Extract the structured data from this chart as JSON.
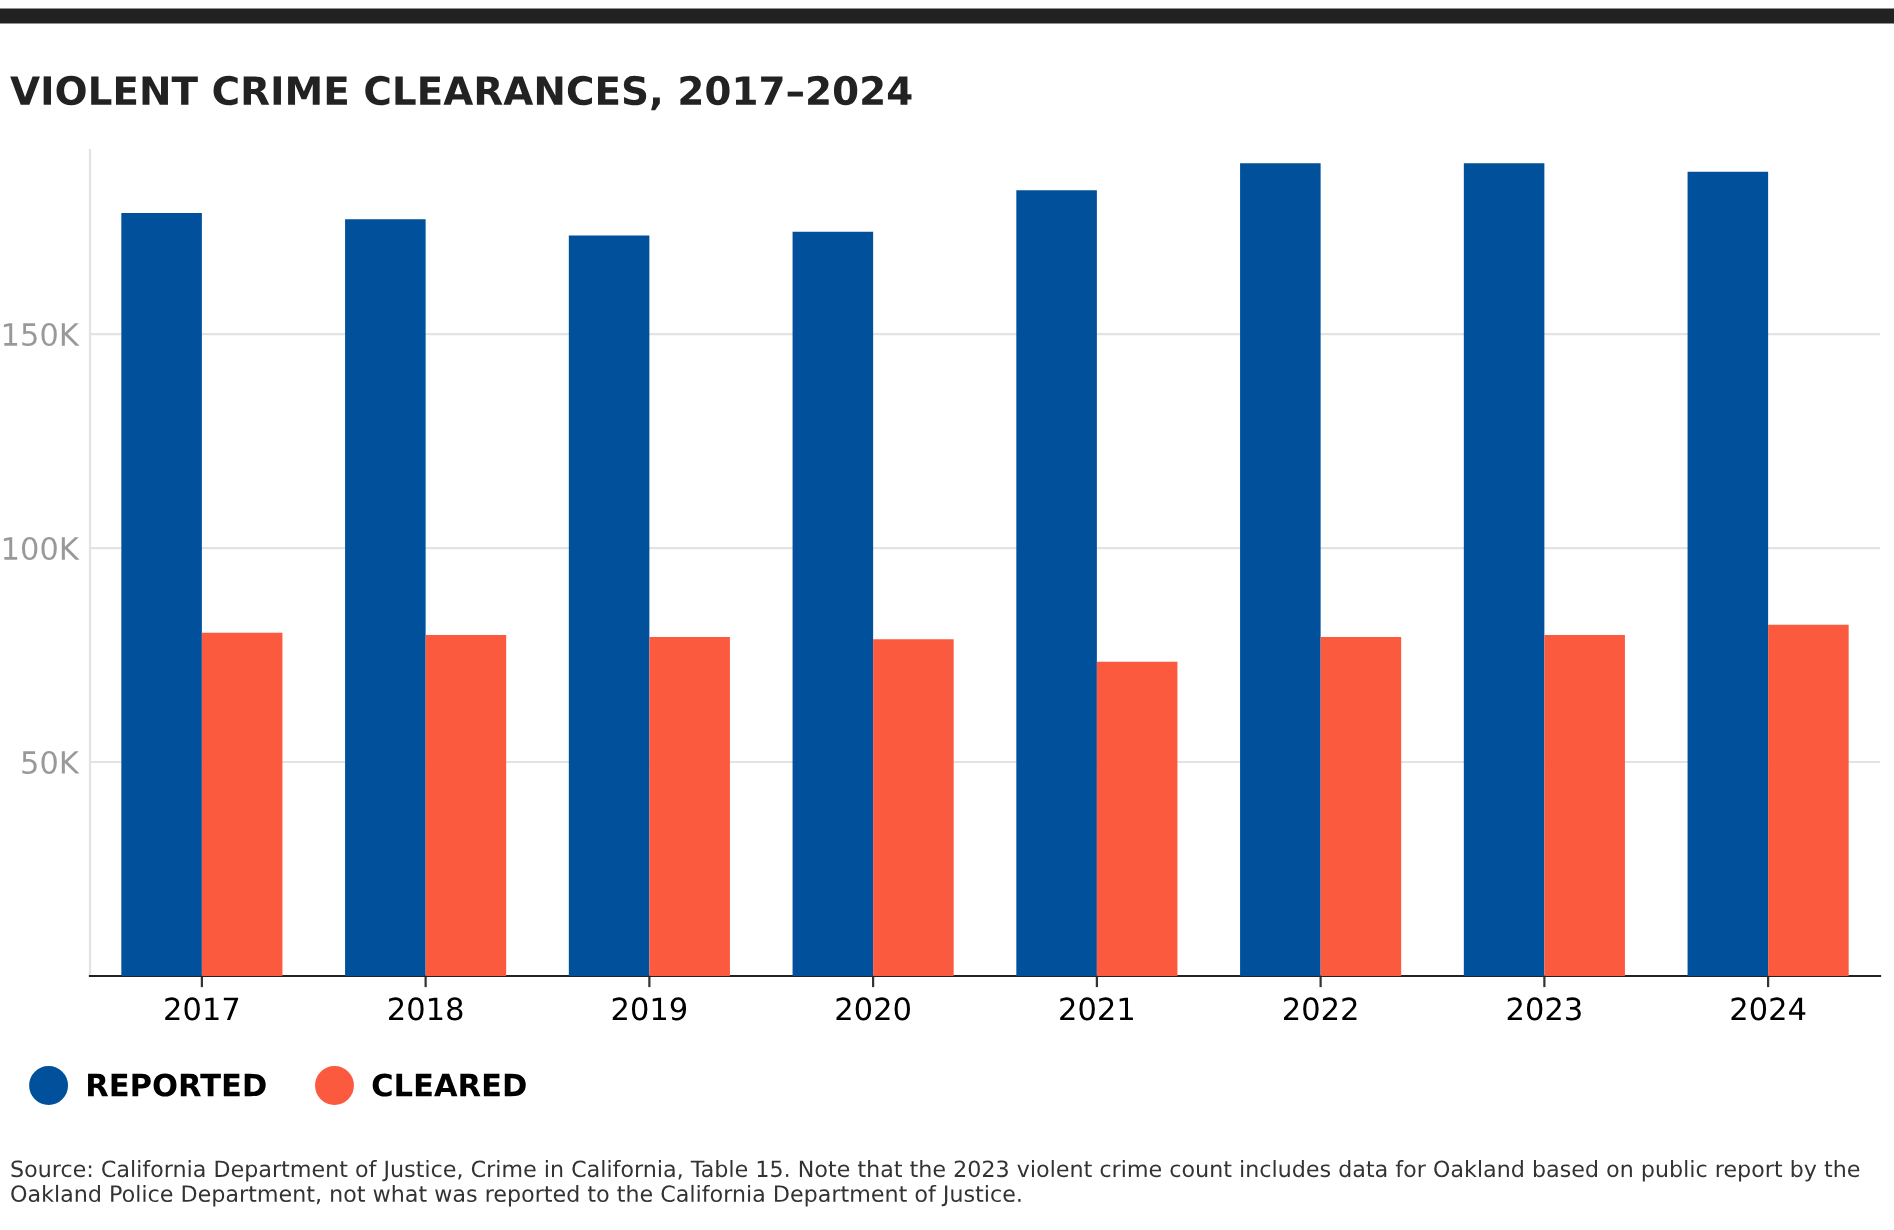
{
  "chart_data": {
    "type": "bar",
    "title": "VIOLENT CRIME CLEARANCES, 2017–2024",
    "categories": [
      "2017",
      "2018",
      "2019",
      "2020",
      "2021",
      "2022",
      "2023",
      "2024"
    ],
    "series": [
      {
        "name": "REPORTED",
        "color": "#00509b",
        "values": [
          178300,
          176800,
          173000,
          173900,
          183600,
          189900,
          189900,
          187900
        ]
      },
      {
        "name": "CLEARED",
        "color": "#fc5a3e",
        "values": [
          80200,
          79700,
          79200,
          78700,
          73400,
          79200,
          79700,
          82100
        ]
      }
    ],
    "ylim": [
      0,
      193000
    ],
    "yticks": [
      {
        "value": 50000,
        "label": "50K"
      },
      {
        "value": 100000,
        "label": "100K"
      },
      {
        "value": 150000,
        "label": "150K"
      }
    ],
    "grid": "y",
    "legend": "bottom left",
    "annotations": [
      "Source: California Department of Justice, Crime in California, Table 15. Note that the 2023 violent crime count includes data for Oakland based on public report by the Oakland Police Department, not what was reported to the California Department of Justice."
    ]
  }
}
